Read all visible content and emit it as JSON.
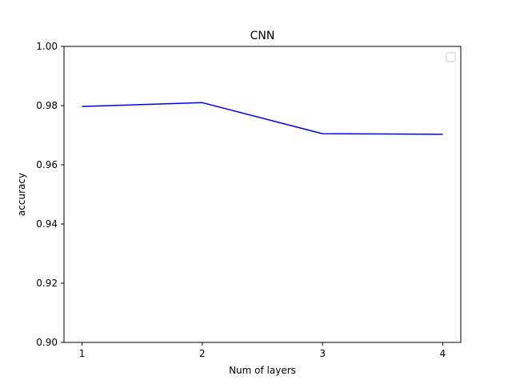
{
  "chart_data": {
    "type": "line",
    "title": "CNN",
    "xlabel": "Num of layers",
    "ylabel": "accuracy",
    "x": [
      1,
      2,
      3,
      4
    ],
    "series": [
      {
        "values": [
          0.9797,
          0.981,
          0.9705,
          0.9703
        ],
        "color": "#0000ff"
      }
    ],
    "xlim": [
      0.85,
      4.15
    ],
    "ylim": [
      0.9,
      1.0
    ],
    "xticks": [
      "1",
      "2",
      "3",
      "4"
    ],
    "yticks": [
      "0.90",
      "0.92",
      "0.94",
      "0.96",
      "0.98",
      "1.00"
    ],
    "grid": false,
    "legend": {
      "placement": "top-right",
      "entries": []
    }
  }
}
